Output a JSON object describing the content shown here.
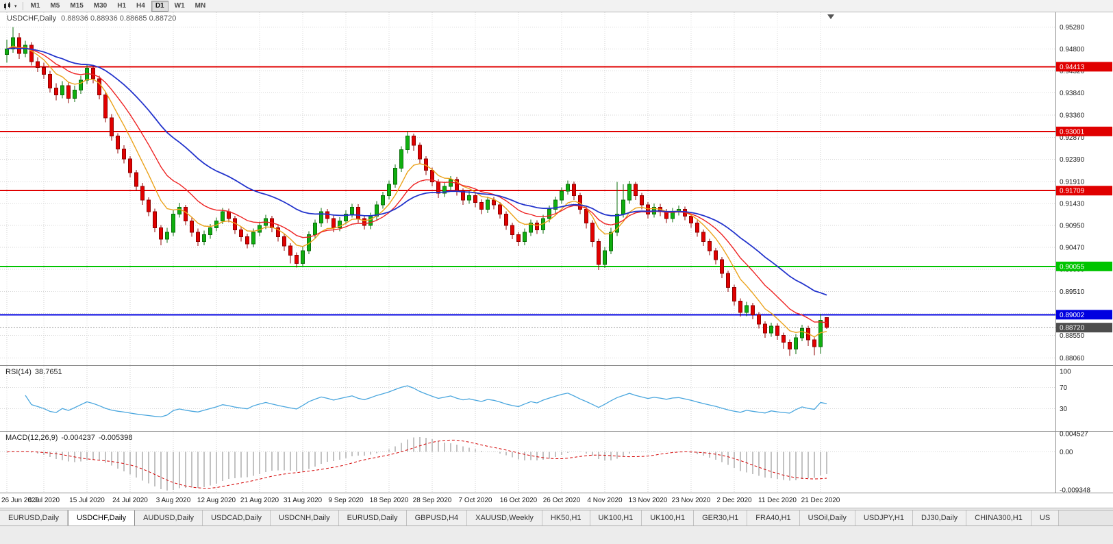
{
  "toolbar": {
    "timeframes": [
      "M1",
      "M5",
      "M15",
      "M30",
      "H1",
      "H4",
      "D1",
      "W1",
      "MN"
    ],
    "active_timeframe": "D1"
  },
  "chart": {
    "title_symbol": "USDCHF,Daily",
    "title_ohlc": "0.88936 0.88936 0.88685 0.88720",
    "price_axis_ticks": [
      "0.95280",
      "0.94800",
      "0.94320",
      "0.93840",
      "0.93360",
      "0.92870",
      "0.92390",
      "0.91910",
      "0.91430",
      "0.90950",
      "0.90470",
      "0.89990",
      "0.89510",
      "0.89030",
      "0.88550",
      "0.88060"
    ],
    "hlines": [
      {
        "value": 0.94413,
        "label": "0.94413",
        "color": "#e00000"
      },
      {
        "value": 0.93001,
        "label": "0.93001",
        "color": "#e00000"
      },
      {
        "value": 0.91709,
        "label": "0.91709",
        "color": "#e00000"
      },
      {
        "value": 0.90055,
        "label": "0.90055",
        "color": "#00c400"
      },
      {
        "value": 0.89002,
        "label": "0.89002",
        "color": "#0000e0"
      }
    ],
    "bid": {
      "value": 0.8872,
      "label": "0.88720",
      "badge_color": "#4d4d4d"
    },
    "colors": {
      "up": "#0fae0f",
      "up_edge": "#0a6e0a",
      "down": "#e00000",
      "down_edge": "#8f0000",
      "ma_fast": "#eba21a",
      "ma_mid": "#ee2222",
      "ma_slow": "#2233cc",
      "grid": "#d6d6d6"
    }
  },
  "rsi": {
    "label": "RSI(14)",
    "value": "38.7651",
    "axis": [
      "100",
      "70",
      "30"
    ],
    "levels": [
      70,
      30
    ],
    "color": "#49a6de"
  },
  "macd": {
    "label": "MACD(12,26,9)",
    "value_main": "-0.004237",
    "value_signal": "-0.005398",
    "axis": [
      "0.004527",
      "0.00",
      "-0.009348"
    ],
    "hist_color": "#c2c2c2",
    "signal_color": "#d40000"
  },
  "tabs": {
    "items": [
      "EURUSD,Daily",
      "USDCHF,Daily",
      "AUDUSD,Daily",
      "USDCAD,Daily",
      "USDCNH,Daily",
      "EURUSD,Daily",
      "GBPUSD,H4",
      "XAUUSD,Weekly",
      "HK50,H1",
      "UK100,H1",
      "UK100,H1",
      "GER30,H1",
      "FRA40,H1",
      "USOil,Daily",
      "USDJPY,H1",
      "DJ30,Daily",
      "CHINA300,H1",
      "US"
    ],
    "active_index": 1
  },
  "chart_data": {
    "type": "candlestick",
    "symbol": "USDCHF",
    "timeframe": "Daily",
    "price_range": [
      0.879,
      0.956
    ],
    "rsi_range": [
      0,
      100
    ],
    "macd_range": [
      -0.01,
      0.005
    ],
    "x_labels": [
      "26 Jun 2020",
      "6 Jul 2020",
      "15 Jul 2020",
      "24 Jul 2020",
      "3 Aug 2020",
      "12 Aug 2020",
      "21 Aug 2020",
      "31 Aug 2020",
      "9 Sep 2020",
      "18 Sep 2020",
      "28 Sep 2020",
      "7 Oct 2020",
      "16 Oct 2020",
      "26 Oct 2020",
      "4 Nov 2020",
      "13 Nov 2020",
      "23 Nov 2020",
      "2 Dec 2020",
      "11 Dec 2020",
      "21 Dec 2020"
    ],
    "x_label_indices": [
      0,
      6,
      13,
      20,
      27,
      34,
      41,
      48,
      55,
      62,
      69,
      76,
      83,
      90,
      97,
      104,
      111,
      118,
      125,
      132
    ],
    "indicators": {
      "moving_averages": [
        {
          "period": 7,
          "method": "ema",
          "color_key": "ma_fast"
        },
        {
          "period": 14,
          "method": "ema",
          "color_key": "ma_mid"
        },
        {
          "period": 30,
          "method": "ema",
          "color_key": "ma_slow"
        }
      ],
      "rsi": {
        "period": 14,
        "last_value": 38.7651
      },
      "macd": {
        "fast": 12,
        "slow": 26,
        "signal": 9,
        "last_main": -0.004237,
        "last_signal": -0.005398
      }
    },
    "candles": [
      [
        0.9468,
        0.95,
        0.945,
        0.948
      ],
      [
        0.948,
        0.9528,
        0.9472,
        0.9505
      ],
      [
        0.9505,
        0.9515,
        0.9458,
        0.947
      ],
      [
        0.947,
        0.9498,
        0.9462,
        0.9488
      ],
      [
        0.9488,
        0.9495,
        0.9444,
        0.9452
      ],
      [
        0.9452,
        0.9462,
        0.943,
        0.944
      ],
      [
        0.944,
        0.945,
        0.9415,
        0.9425
      ],
      [
        0.9425,
        0.9432,
        0.9385,
        0.9395
      ],
      [
        0.9395,
        0.9405,
        0.9368,
        0.938
      ],
      [
        0.938,
        0.941,
        0.9372,
        0.94
      ],
      [
        0.94,
        0.9408,
        0.9362,
        0.9372
      ],
      [
        0.9372,
        0.94,
        0.9364,
        0.939
      ],
      [
        0.939,
        0.9422,
        0.9382,
        0.9412
      ],
      [
        0.9412,
        0.9446,
        0.9404,
        0.9438
      ],
      [
        0.9438,
        0.9444,
        0.9405,
        0.9415
      ],
      [
        0.9415,
        0.9422,
        0.937,
        0.938
      ],
      [
        0.938,
        0.9386,
        0.932,
        0.933
      ],
      [
        0.933,
        0.9338,
        0.928,
        0.929
      ],
      [
        0.929,
        0.9296,
        0.9252,
        0.9262
      ],
      [
        0.9262,
        0.927,
        0.923,
        0.924
      ],
      [
        0.924,
        0.9246,
        0.92,
        0.921
      ],
      [
        0.921,
        0.9216,
        0.917,
        0.918
      ],
      [
        0.918,
        0.9188,
        0.914,
        0.915
      ],
      [
        0.915,
        0.9156,
        0.9115,
        0.9125
      ],
      [
        0.9125,
        0.9132,
        0.908,
        0.909
      ],
      [
        0.909,
        0.9096,
        0.9052,
        0.9065
      ],
      [
        0.9065,
        0.909,
        0.9057,
        0.908
      ],
      [
        0.908,
        0.9128,
        0.9072,
        0.912
      ],
      [
        0.912,
        0.9144,
        0.9112,
        0.9135
      ],
      [
        0.9135,
        0.914,
        0.9096,
        0.9105
      ],
      [
        0.9105,
        0.9112,
        0.907,
        0.908
      ],
      [
        0.908,
        0.9088,
        0.905,
        0.906
      ],
      [
        0.906,
        0.9084,
        0.9052,
        0.9075
      ],
      [
        0.9075,
        0.9098,
        0.9066,
        0.909
      ],
      [
        0.909,
        0.9112,
        0.9082,
        0.9105
      ],
      [
        0.9105,
        0.9133,
        0.9098,
        0.9125
      ],
      [
        0.9125,
        0.9132,
        0.9102,
        0.911
      ],
      [
        0.911,
        0.9116,
        0.9076,
        0.9085
      ],
      [
        0.9085,
        0.9092,
        0.906,
        0.907
      ],
      [
        0.907,
        0.9077,
        0.9045,
        0.9055
      ],
      [
        0.9055,
        0.9088,
        0.9047,
        0.908
      ],
      [
        0.908,
        0.9103,
        0.9072,
        0.9095
      ],
      [
        0.9095,
        0.9118,
        0.9087,
        0.911
      ],
      [
        0.911,
        0.9116,
        0.908,
        0.909
      ],
      [
        0.909,
        0.9096,
        0.906,
        0.907
      ],
      [
        0.907,
        0.9076,
        0.904,
        0.905
      ],
      [
        0.905,
        0.9056,
        0.9012,
        0.903
      ],
      [
        0.903,
        0.9036,
        0.9003,
        0.9012
      ],
      [
        0.9012,
        0.9048,
        0.9006,
        0.904
      ],
      [
        0.904,
        0.9082,
        0.9032,
        0.9075
      ],
      [
        0.9075,
        0.9108,
        0.9066,
        0.91
      ],
      [
        0.91,
        0.9133,
        0.9092,
        0.9125
      ],
      [
        0.9125,
        0.9131,
        0.91,
        0.911
      ],
      [
        0.911,
        0.9117,
        0.908,
        0.909
      ],
      [
        0.909,
        0.9113,
        0.9082,
        0.9105
      ],
      [
        0.9105,
        0.9128,
        0.9097,
        0.912
      ],
      [
        0.912,
        0.9142,
        0.9112,
        0.9135
      ],
      [
        0.9135,
        0.9141,
        0.9101,
        0.911
      ],
      [
        0.911,
        0.9116,
        0.9086,
        0.9095
      ],
      [
        0.9095,
        0.9123,
        0.9087,
        0.9115
      ],
      [
        0.9115,
        0.9148,
        0.9107,
        0.914
      ],
      [
        0.914,
        0.9168,
        0.9132,
        0.916
      ],
      [
        0.916,
        0.9193,
        0.9152,
        0.9185
      ],
      [
        0.9185,
        0.9228,
        0.9177,
        0.922
      ],
      [
        0.922,
        0.9268,
        0.9212,
        0.926
      ],
      [
        0.926,
        0.9301,
        0.9252,
        0.929
      ],
      [
        0.929,
        0.9295,
        0.9258,
        0.927
      ],
      [
        0.927,
        0.9276,
        0.923,
        0.924
      ],
      [
        0.924,
        0.9246,
        0.9205,
        0.9215
      ],
      [
        0.9215,
        0.9221,
        0.918,
        0.919
      ],
      [
        0.919,
        0.9196,
        0.9155,
        0.9165
      ],
      [
        0.9165,
        0.919,
        0.9157,
        0.918
      ],
      [
        0.918,
        0.9203,
        0.9172,
        0.9195
      ],
      [
        0.9195,
        0.9201,
        0.916,
        0.917
      ],
      [
        0.917,
        0.9176,
        0.914,
        0.915
      ],
      [
        0.915,
        0.917,
        0.9142,
        0.916
      ],
      [
        0.916,
        0.9166,
        0.9135,
        0.9145
      ],
      [
        0.9145,
        0.9152,
        0.912,
        0.913
      ],
      [
        0.913,
        0.9158,
        0.9122,
        0.915
      ],
      [
        0.915,
        0.9157,
        0.913,
        0.914
      ],
      [
        0.914,
        0.9146,
        0.911,
        0.912
      ],
      [
        0.912,
        0.9126,
        0.9085,
        0.9095
      ],
      [
        0.9095,
        0.9101,
        0.9065,
        0.9075
      ],
      [
        0.9075,
        0.9081,
        0.905,
        0.906
      ],
      [
        0.906,
        0.9088,
        0.9052,
        0.908
      ],
      [
        0.908,
        0.9108,
        0.9072,
        0.91
      ],
      [
        0.91,
        0.9106,
        0.9076,
        0.9085
      ],
      [
        0.9085,
        0.9118,
        0.9077,
        0.911
      ],
      [
        0.911,
        0.9138,
        0.9102,
        0.913
      ],
      [
        0.913,
        0.9158,
        0.9122,
        0.915
      ],
      [
        0.915,
        0.9178,
        0.9142,
        0.917
      ],
      [
        0.917,
        0.9193,
        0.9162,
        0.9185
      ],
      [
        0.9185,
        0.9191,
        0.915,
        0.916
      ],
      [
        0.916,
        0.9166,
        0.912,
        0.913
      ],
      [
        0.913,
        0.9136,
        0.9088,
        0.91
      ],
      [
        0.91,
        0.9106,
        0.9048,
        0.906
      ],
      [
        0.906,
        0.9066,
        0.8998,
        0.901
      ],
      [
        0.901,
        0.9048,
        0.9002,
        0.904
      ],
      [
        0.904,
        0.909,
        0.9032,
        0.908
      ],
      [
        0.908,
        0.919,
        0.9072,
        0.912
      ],
      [
        0.912,
        0.9185,
        0.9112,
        0.915
      ],
      [
        0.915,
        0.9192,
        0.9142,
        0.9185
      ],
      [
        0.9185,
        0.919,
        0.915,
        0.916
      ],
      [
        0.916,
        0.9166,
        0.913,
        0.914
      ],
      [
        0.914,
        0.9146,
        0.911,
        0.912
      ],
      [
        0.912,
        0.9143,
        0.9112,
        0.9135
      ],
      [
        0.9135,
        0.9142,
        0.9115,
        0.9125
      ],
      [
        0.9125,
        0.9131,
        0.91,
        0.911
      ],
      [
        0.911,
        0.9133,
        0.9102,
        0.9125
      ],
      [
        0.9125,
        0.9138,
        0.9117,
        0.913
      ],
      [
        0.913,
        0.9136,
        0.9106,
        0.9115
      ],
      [
        0.9115,
        0.9121,
        0.909,
        0.91
      ],
      [
        0.91,
        0.9106,
        0.907,
        0.908
      ],
      [
        0.908,
        0.9086,
        0.905,
        0.906
      ],
      [
        0.906,
        0.9066,
        0.903,
        0.904
      ],
      [
        0.904,
        0.9046,
        0.901,
        0.902
      ],
      [
        0.902,
        0.9026,
        0.898,
        0.899
      ],
      [
        0.899,
        0.8996,
        0.895,
        0.896
      ],
      [
        0.896,
        0.8966,
        0.892,
        0.893
      ],
      [
        0.893,
        0.8936,
        0.8896,
        0.8905
      ],
      [
        0.8905,
        0.8928,
        0.8897,
        0.892
      ],
      [
        0.892,
        0.8926,
        0.889,
        0.89
      ],
      [
        0.89,
        0.8906,
        0.887,
        0.888
      ],
      [
        0.888,
        0.8886,
        0.885,
        0.886
      ],
      [
        0.886,
        0.8883,
        0.8852,
        0.8875
      ],
      [
        0.8875,
        0.8881,
        0.8845,
        0.8855
      ],
      [
        0.8855,
        0.8861,
        0.8826,
        0.884
      ],
      [
        0.884,
        0.8846,
        0.881,
        0.8825
      ],
      [
        0.8825,
        0.8858,
        0.8814,
        0.885
      ],
      [
        0.885,
        0.8878,
        0.8842,
        0.887
      ],
      [
        0.887,
        0.8876,
        0.8832,
        0.8845
      ],
      [
        0.8845,
        0.8851,
        0.8812,
        0.883
      ],
      [
        0.883,
        0.8902,
        0.8815,
        0.8888
      ],
      [
        0.8894,
        0.8894,
        0.8869,
        0.8872
      ]
    ]
  }
}
